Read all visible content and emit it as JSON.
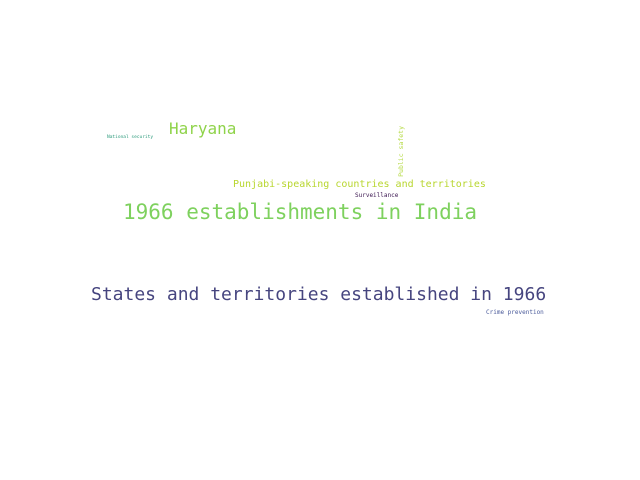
{
  "word_cloud": {
    "words": [
      {
        "key": "states",
        "text": "States and territories established in 1966",
        "color": "#46457f"
      },
      {
        "key": "india1966",
        "text": "1966 establishments in India",
        "color": "#7ed15e"
      },
      {
        "key": "haryana",
        "text": "Haryana",
        "color": "#8fd34a"
      },
      {
        "key": "punjabi",
        "text": "Punjabi-speaking countries and territories",
        "color": "#b8d62f"
      },
      {
        "key": "public_safety",
        "text": "Public safety",
        "color": "#b3d93e"
      },
      {
        "key": "surveillance",
        "text": "Surveillance",
        "color": "#3b1650"
      },
      {
        "key": "crime",
        "text": "Crime prevention",
        "color": "#4a5a9a"
      },
      {
        "key": "national",
        "text": "National security",
        "color": "#2a9a7a"
      }
    ]
  }
}
